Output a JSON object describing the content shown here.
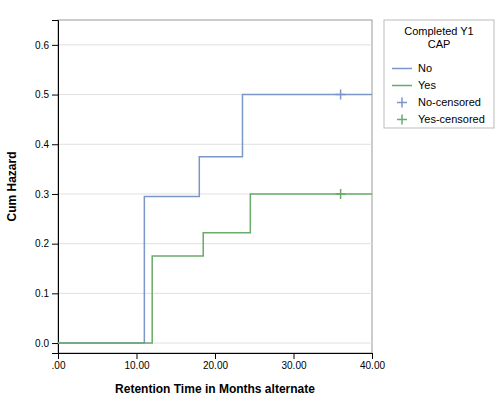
{
  "chart_data": {
    "type": "line",
    "xlabel": "Retention Time in Months alternate",
    "ylabel": "Cum Hazard",
    "legend_title": "Completed Y1\n    CAP",
    "xlim": [
      0,
      40
    ],
    "ylim": [
      -0.02,
      0.65
    ],
    "xticks": [
      {
        "value": 0,
        "label": ".00"
      },
      {
        "value": 10,
        "label": "10.00"
      },
      {
        "value": 20,
        "label": "20.00"
      },
      {
        "value": 30,
        "label": "30.00"
      },
      {
        "value": 40,
        "label": "40.00"
      }
    ],
    "yticks": [
      {
        "value": 0.0,
        "label": "0.0"
      },
      0.1,
      0.2,
      0.3,
      0.4,
      0.5,
      0.6
    ],
    "grid": "y",
    "legend": "upper right",
    "series": [
      {
        "name": "No",
        "type": "line",
        "color": "#7b96c8",
        "x": [
          0,
          11.0,
          11.0,
          18.0,
          18.0,
          23.5,
          23.5,
          40.0
        ],
        "values": [
          0.0,
          0.0,
          0.295,
          0.295,
          0.375,
          0.375,
          0.5,
          0.5
        ]
      },
      {
        "name": "Yes",
        "type": "line",
        "color": "#6aaa6a",
        "x": [
          0,
          12.0,
          12.0,
          18.5,
          18.5,
          24.5,
          24.5,
          40.0
        ],
        "values": [
          0.0,
          0.0,
          0.175,
          0.175,
          0.222,
          0.222,
          0.3,
          0.3
        ]
      },
      {
        "name": "No-censored",
        "type": "scatter",
        "marker": "+",
        "color": "#7b96c8",
        "x": [
          36.0
        ],
        "values": [
          0.5
        ]
      },
      {
        "name": "Yes-censored",
        "type": "scatter",
        "marker": "+",
        "color": "#6aaa6a",
        "x": [
          36.0
        ],
        "values": [
          0.3
        ]
      }
    ]
  }
}
